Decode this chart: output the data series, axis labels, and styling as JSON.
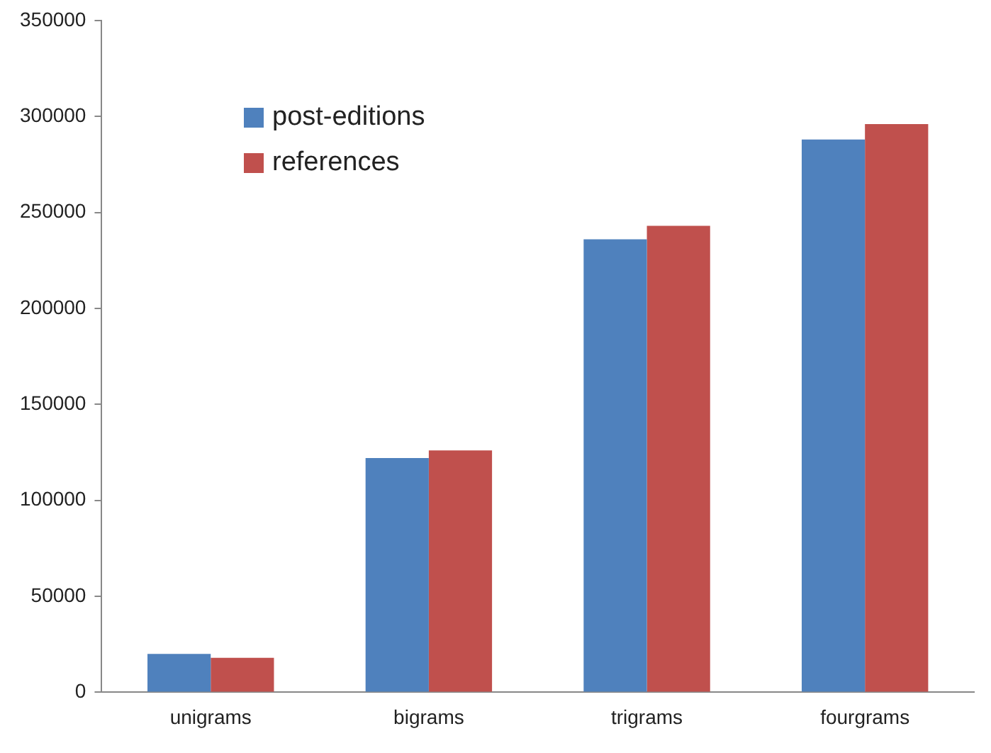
{
  "chart_data": {
    "type": "bar",
    "categories": [
      "unigrams",
      "bigrams",
      "trigrams",
      "fourgrams"
    ],
    "series": [
      {
        "name": "post-editions",
        "color": "#4f81bd",
        "values": [
          20000,
          122000,
          236000,
          288000
        ]
      },
      {
        "name": "references",
        "color": "#c0504d",
        "values": [
          18000,
          126000,
          243000,
          296000
        ]
      }
    ],
    "ylim": [
      0,
      350000
    ],
    "yticks": [
      0,
      50000,
      100000,
      150000,
      200000,
      250000,
      300000,
      350000
    ],
    "grid": false,
    "legend": "top left"
  }
}
